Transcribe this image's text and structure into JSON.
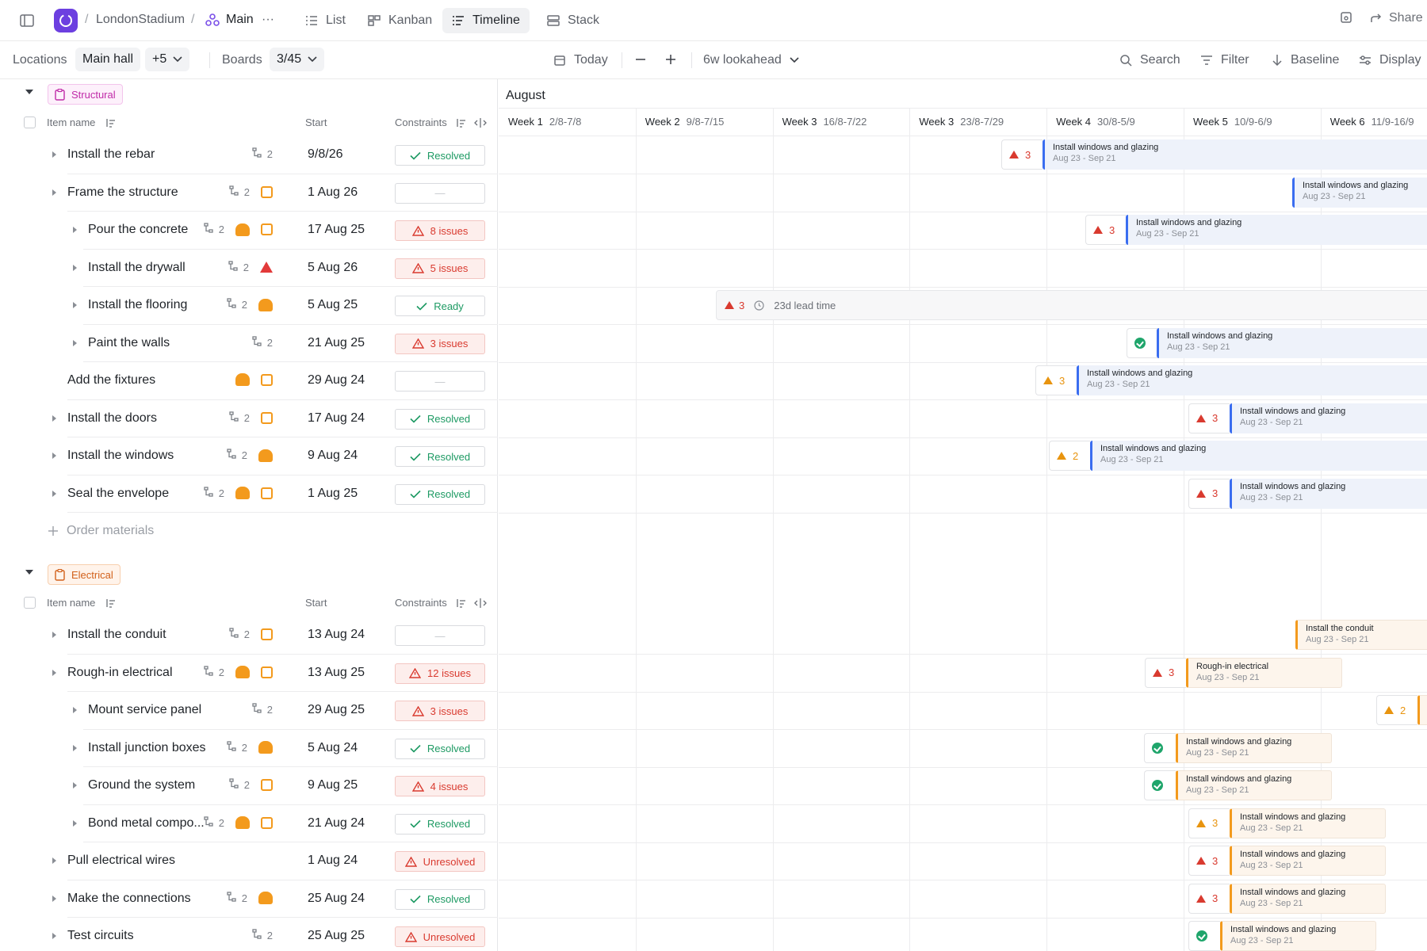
{
  "header": {
    "breadcrumb_project": "LondonStadium",
    "breadcrumb_board": "Main",
    "more": "···",
    "tabs": [
      {
        "label": "List"
      },
      {
        "label": "Kanban"
      },
      {
        "label": "Timeline"
      },
      {
        "label": "Stack"
      }
    ],
    "share_label": "Share"
  },
  "filterbar": {
    "locations_label": "Locations",
    "locations_value": "Main hall",
    "locations_more": "+5",
    "boards_label": "Boards",
    "boards_value": "3/45",
    "today_label": "Today",
    "lookahead_label": "6w lookahead",
    "search_label": "Search",
    "filter_label": "Filter",
    "baseline_label": "Baseline",
    "display_label": "Display"
  },
  "columns": {
    "name": "Item name",
    "start": "Start",
    "constraints": "Constraints"
  },
  "groups": [
    {
      "tag": "Structural",
      "add_label": "Order materials",
      "rows": [
        {
          "name": "Install the rebar",
          "subtasks": "2",
          "start": "9/8/26",
          "status": "Resolved"
        },
        {
          "name": "Frame the structure",
          "subtasks": "2",
          "start": "1 Aug 26",
          "status": "—"
        },
        {
          "name": "Pour the concrete",
          "subtasks": "2",
          "start": "17 Aug 25",
          "status": "8 issues"
        },
        {
          "name": "Install the drywall",
          "subtasks": "2",
          "start": "5 Aug 26",
          "status": "5 issues"
        },
        {
          "name": "Install the flooring",
          "subtasks": "2",
          "start": "5 Aug 25",
          "status": "Ready"
        },
        {
          "name": "Paint the walls",
          "subtasks": "2",
          "start": "21 Aug 25",
          "status": "3 issues"
        },
        {
          "name": "Add the fixtures",
          "subtasks": "",
          "start": "29 Aug 24",
          "status": "—"
        },
        {
          "name": "Install the doors",
          "subtasks": "2",
          "start": "17 Aug 24",
          "status": "Resolved"
        },
        {
          "name": "Install the windows",
          "subtasks": "2",
          "start": "9 Aug 24",
          "status": "Resolved"
        },
        {
          "name": "Seal the envelope",
          "subtasks": "2",
          "start": "1 Aug 25",
          "status": "Resolved"
        }
      ]
    },
    {
      "tag": "Electrical",
      "rows": [
        {
          "name": "Install the conduit",
          "subtasks": "2",
          "start": "13 Aug 24",
          "status": "—"
        },
        {
          "name": "Rough-in electrical",
          "subtasks": "2",
          "start": "13 Aug 25",
          "status": "12 issues"
        },
        {
          "name": "Mount service panel",
          "subtasks": "2",
          "start": "29 Aug 25",
          "status": "3 issues"
        },
        {
          "name": "Install junction boxes",
          "subtasks": "2",
          "start": "5 Aug 24",
          "status": "Resolved"
        },
        {
          "name": "Ground the system",
          "subtasks": "2",
          "start": "9 Aug 25",
          "status": "4 issues"
        },
        {
          "name": "Bond metal compo...",
          "subtasks": "2",
          "start": "21 Aug 24",
          "status": "Resolved"
        },
        {
          "name": "Pull electrical wires",
          "subtasks": "",
          "start": "1 Aug 24",
          "status": "Unresolved"
        },
        {
          "name": "Make the connections",
          "subtasks": "2",
          "start": "25 Aug 24",
          "status": "Resolved"
        },
        {
          "name": "Test circuits",
          "subtasks": "2",
          "start": "25 Aug 25",
          "status": "Unresolved"
        }
      ]
    }
  ],
  "timeline": {
    "month": "August",
    "weeks": [
      {
        "label": "Week 1",
        "range": "2/8-7/8"
      },
      {
        "label": "Week 2",
        "range": "9/8-7/15"
      },
      {
        "label": "Week 3",
        "range": "16/8-7/22"
      },
      {
        "label": "Week 3",
        "range": "23/8-7/29"
      },
      {
        "label": "Week 4",
        "range": "30/8-5/9"
      },
      {
        "label": "Week 5",
        "range": "10/9-6/9"
      },
      {
        "label": "Week 6",
        "range": "11/9-16/9"
      }
    ],
    "bar_title": "Install windows and glazing",
    "bar_dates": "Aug 23 - Sep 21",
    "lead_count": "3",
    "lead_text": "23d lead time",
    "conduit_title": "Install the conduit",
    "rough_title": "Rough-in electrical",
    "flag_counts": {
      "three": "3",
      "two": "2"
    }
  },
  "colors": {
    "accent": "#6c3fe0",
    "blue_bar": "#3a6df0",
    "orange_bar": "#f39a1d",
    "error": "#d93a2f",
    "ok": "#1d9a63"
  }
}
